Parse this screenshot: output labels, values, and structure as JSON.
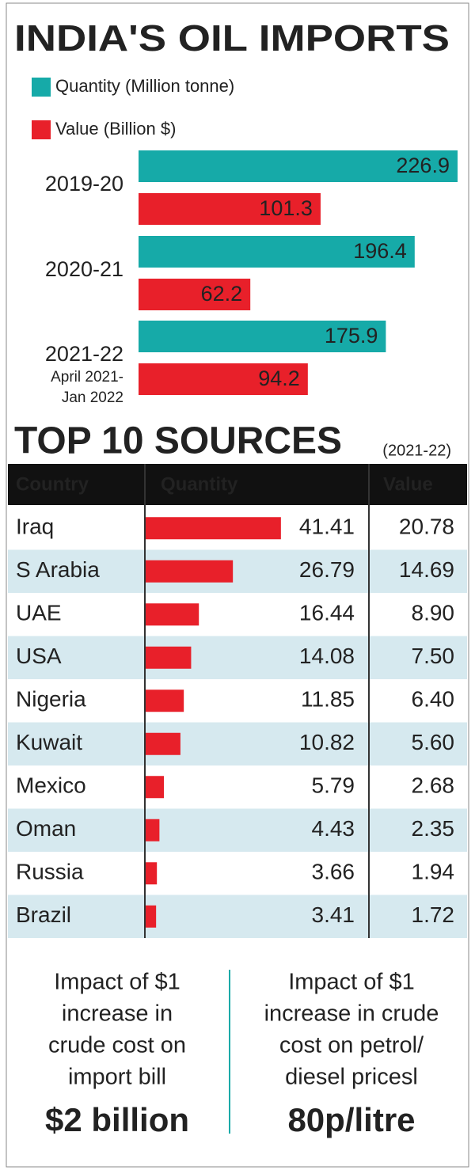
{
  "chart_data": [
    {
      "type": "bar",
      "title": "INDIA'S OIL IMPORTS",
      "categories": [
        "2019-20",
        "2020-21",
        "2021-22"
      ],
      "category_notes": [
        null,
        null,
        [
          "April 2021-",
          "Jan 2022"
        ]
      ],
      "series": [
        {
          "name": "Quantity (Million tonne)",
          "color": "#16aaa8",
          "values": [
            226.9,
            196.4,
            175.9
          ]
        },
        {
          "name": "Value (Billion $)",
          "color": "#e8202a",
          "values": [
            101.3,
            62.2,
            94.2
          ]
        }
      ]
    },
    {
      "type": "table",
      "title": "TOP 10 SOURCES",
      "subtitle": "(2021-22)",
      "category_header": "Country",
      "categories": [
        "Iraq",
        "S Arabia",
        "UAE",
        "USA",
        "Nigeria",
        "Kuwait",
        "Mexico",
        "Oman",
        "Russia",
        "Brazil"
      ],
      "series": [
        {
          "name": "Quantity",
          "color": "#e8202a",
          "values": [
            41.41,
            26.79,
            16.44,
            14.08,
            11.85,
            10.82,
            5.79,
            4.43,
            3.66,
            3.41
          ]
        },
        {
          "name": "Value",
          "values": [
            20.78,
            14.69,
            8.9,
            7.5,
            6.4,
            5.6,
            2.68,
            2.35,
            1.94,
            1.72
          ],
          "value_labels": [
            "20.78",
            "14.69",
            "8.90",
            "7.50",
            "6.40",
            "5.60",
            "2.68",
            "2.35",
            "1.94",
            "1.72"
          ]
        }
      ]
    }
  ],
  "impacts": [
    {
      "lines": [
        "Impact of $1",
        "increase in",
        "crude cost on",
        "import bill"
      ],
      "value": "$2 billion"
    },
    {
      "lines": [
        "Impact of $1",
        "increase in crude",
        "cost on petrol/",
        "diesel pricesl"
      ],
      "value": "80p/litre"
    }
  ]
}
